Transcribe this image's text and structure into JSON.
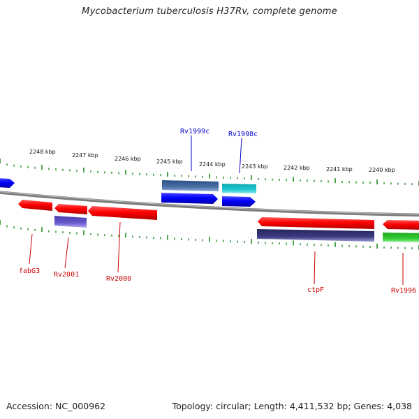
{
  "header": {
    "title": "Mycobacterium tuberculosis H37Rv, complete genome"
  },
  "footer": {
    "accession": "Accession: NC_000962",
    "summary": "Topology: circular; Length: 4,411,532 bp; Genes: 4,038"
  },
  "map": {
    "kbp_labels": [
      "2248 kbp",
      "2247 kbp",
      "2246 kbp",
      "2245 kbp",
      "2244 kbp",
      "2243 kbp",
      "2242 kbp",
      "2241 kbp",
      "2240 kbp"
    ],
    "gene_labels": [
      {
        "name": "Rv1999c",
        "color": "#0000cc"
      },
      {
        "name": "Rv1998c",
        "color": "#0000cc"
      },
      {
        "name": "fabG3",
        "color": "#cc0000"
      },
      {
        "name": "Rv2001",
        "color": "#cc0000"
      },
      {
        "name": "Rv2000",
        "color": "#cc0000"
      },
      {
        "name": "ctpF",
        "color": "#cc0000"
      },
      {
        "name": "Rv1996",
        "color": "#cc0000"
      }
    ],
    "colors": {
      "forward_strand": "#ff0000",
      "reverse_strand": "#0000ff",
      "backbone": "#808080",
      "ticks": "#228b22",
      "cds_slate": "#4a6fa5",
      "cds_cyan": "#20c8d0",
      "cds_purple": "#6a5acd",
      "cds_navy": "#3a3a80",
      "cds_green": "#33cc33"
    }
  }
}
